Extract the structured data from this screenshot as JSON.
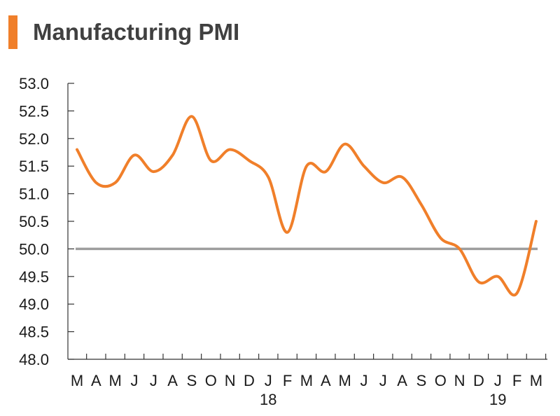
{
  "colors": {
    "accent": "#f07f2a",
    "line": "#f07f2a",
    "reference": "#9e9e9e",
    "axis": "#333333",
    "title": "#404040"
  },
  "chart_data": {
    "type": "line",
    "title": "Manufacturing PMI",
    "xlabel": "",
    "ylabel": "",
    "ylim": [
      48.0,
      53.0
    ],
    "yticks": [
      "53.0",
      "52.5",
      "52.0",
      "51.5",
      "51.0",
      "50.5",
      "50.0",
      "49.5",
      "49.0",
      "48.5",
      "48.0"
    ],
    "categories": [
      "M",
      "A",
      "M",
      "J",
      "J",
      "A",
      "S",
      "O",
      "N",
      "D",
      "J",
      "F",
      "M",
      "A",
      "M",
      "J",
      "J",
      "A",
      "S",
      "O",
      "N",
      "D",
      "J",
      "F",
      "M"
    ],
    "year_labels": [
      {
        "label": "18",
        "index": 10
      },
      {
        "label": "19",
        "index": 22
      }
    ],
    "series": [
      {
        "values": [
          51.8,
          51.2,
          51.2,
          51.7,
          51.4,
          51.7,
          52.4,
          51.6,
          51.8,
          51.6,
          51.3,
          50.3,
          51.5,
          51.4,
          51.9,
          51.5,
          51.2,
          51.3,
          50.8,
          50.2,
          50.0,
          49.4,
          49.5,
          49.2,
          50.5
        ]
      }
    ],
    "reference_line": 50.0,
    "grid": false,
    "legend": "none"
  }
}
